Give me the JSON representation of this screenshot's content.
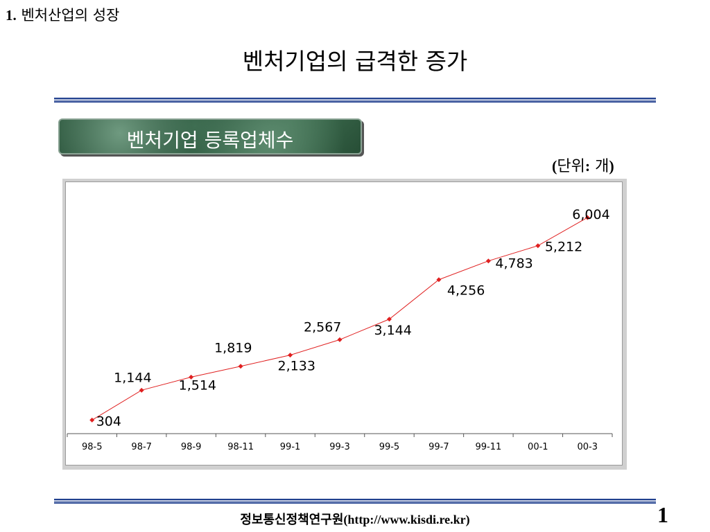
{
  "section": {
    "number": "1.",
    "title": "벤처산업의 성장"
  },
  "main_title": "벤처기업의 급격한 증가",
  "banner": "벤처기업 등록업체수",
  "unit": {
    "open": "(",
    "text": "단위",
    "colon": ":",
    "value": " 개",
    "close": ")"
  },
  "chart_data": {
    "type": "line",
    "categories": [
      "98-5",
      "98-7",
      "98-9",
      "98-11",
      "99-1",
      "99-3",
      "99-5",
      "99-7",
      "99-11",
      "00-1",
      "00-3"
    ],
    "values": [
      304,
      1144,
      1514,
      1819,
      2133,
      2567,
      3144,
      4256,
      4783,
      5212,
      6004
    ],
    "labels": [
      "304",
      "1,144",
      "1,514",
      "1,819",
      "2,133",
      "2,567",
      "3,144",
      "4,256",
      "4,783",
      "5,212",
      "6,004"
    ],
    "title": "",
    "xlabel": "",
    "ylabel": "",
    "ylim": [
      0,
      7000
    ],
    "grid": false,
    "line_color": "#e02020",
    "marker_color": "#e02020"
  },
  "footer": {
    "org": "정보통신정책연구원",
    "url": "(http://www.kisdi.re.kr)"
  },
  "page_number": "1"
}
